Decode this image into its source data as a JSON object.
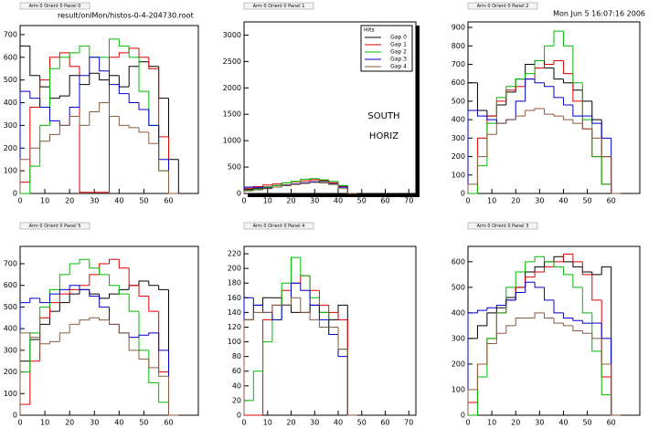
{
  "file_label": "result/onlMon/histos-0-4-204730.root",
  "timestamp": "Mon Jun  5 16:07:16 2006",
  "chart_data": [
    {
      "type": "histogram",
      "title": "Arm 0 Orient 0 Panel 0",
      "xlim": [
        0,
        72
      ],
      "xticks": [
        0,
        10,
        20,
        30,
        40,
        50,
        60
      ],
      "ylim": [
        0,
        740
      ],
      "yticks": [
        0,
        100,
        200,
        300,
        400,
        500,
        600,
        700
      ],
      "bins": [
        0,
        4,
        8,
        12,
        16,
        20,
        24,
        28,
        32,
        36,
        40,
        44,
        48,
        52,
        56,
        60,
        64
      ],
      "series": [
        {
          "color": "#000000",
          "values": [
            650,
            520,
            470,
            420,
            430,
            520,
            480,
            530,
            500,
            520,
            470,
            560,
            580,
            560,
            420,
            150
          ]
        },
        {
          "color": "#dd0000",
          "values": [
            50,
            380,
            500,
            600,
            620,
            560,
            5,
            5,
            5,
            600,
            620,
            640,
            600,
            550,
            250,
            0
          ]
        },
        {
          "color": "#00bb00",
          "values": [
            0,
            120,
            300,
            550,
            600,
            620,
            650,
            600,
            600,
            680,
            650,
            600,
            450,
            300,
            100,
            0
          ]
        },
        {
          "color": "#0000cc",
          "values": [
            450,
            420,
            380,
            320,
            300,
            380,
            520,
            600,
            540,
            480,
            440,
            400,
            370,
            300,
            150,
            0
          ]
        },
        {
          "color": "#8b5a3c",
          "values": [
            150,
            200,
            230,
            260,
            300,
            340,
            300,
            360,
            400,
            340,
            300,
            290,
            270,
            220,
            100,
            0
          ]
        }
      ]
    },
    {
      "type": "histogram",
      "title": "Arm 0 Orient 0 Panel 1",
      "xlim": [
        0,
        73
      ],
      "xticks": [
        0,
        10,
        20,
        30,
        40,
        50,
        60,
        70
      ],
      "ylim": [
        0,
        3250
      ],
      "yticks": [
        0,
        500,
        1000,
        1500,
        2000,
        2500,
        3000
      ],
      "bins": [
        0,
        4,
        8,
        12,
        16,
        20,
        24,
        28,
        32,
        36,
        40,
        44,
        48
      ],
      "legend_title": "Hits",
      "legend": "upper right",
      "annotations": [
        "SOUTH",
        "HORIZ"
      ],
      "series": [
        {
          "name": "Gap 0",
          "color": "#000000",
          "values": [
            80,
            100,
            120,
            150,
            160,
            180,
            200,
            220,
            230,
            200,
            150,
            0
          ]
        },
        {
          "name": "Gap 1",
          "color": "#dd0000",
          "values": [
            100,
            130,
            160,
            180,
            200,
            220,
            240,
            260,
            250,
            200,
            130,
            0
          ]
        },
        {
          "name": "Gap 2",
          "color": "#00bb00",
          "values": [
            60,
            80,
            110,
            150,
            200,
            230,
            270,
            280,
            260,
            230,
            150,
            0
          ]
        },
        {
          "name": "Gap 3",
          "color": "#0000cc",
          "values": [
            120,
            110,
            100,
            120,
            150,
            180,
            200,
            220,
            200,
            180,
            120,
            0
          ]
        },
        {
          "name": "Gap 4",
          "color": "#8b5a3c",
          "values": [
            50,
            70,
            90,
            120,
            150,
            170,
            190,
            210,
            200,
            170,
            100,
            0
          ]
        }
      ]
    },
    {
      "type": "histogram",
      "title": "Arm 0 Orient 0 Panel 2",
      "xlim": [
        0,
        72
      ],
      "xticks": [
        0,
        10,
        20,
        30,
        40,
        50,
        60
      ],
      "ylim": [
        0,
        930
      ],
      "yticks": [
        0,
        100,
        200,
        300,
        400,
        500,
        600,
        700,
        800,
        900
      ],
      "bins": [
        0,
        4,
        8,
        12,
        16,
        20,
        24,
        28,
        32,
        36,
        40,
        44,
        48,
        52,
        56,
        60,
        64
      ],
      "series": [
        {
          "color": "#000000",
          "values": [
            600,
            450,
            420,
            480,
            550,
            620,
            700,
            720,
            680,
            620,
            600,
            560,
            500,
            400,
            200,
            0
          ]
        },
        {
          "color": "#dd0000",
          "values": [
            0,
            300,
            420,
            500,
            560,
            580,
            620,
            680,
            700,
            720,
            650,
            500,
            350,
            200,
            50,
            0
          ]
        },
        {
          "color": "#00bb00",
          "values": [
            0,
            150,
            380,
            520,
            580,
            620,
            650,
            720,
            800,
            880,
            800,
            600,
            400,
            200,
            50,
            0
          ]
        },
        {
          "color": "#0000cc",
          "values": [
            450,
            420,
            400,
            380,
            400,
            500,
            620,
            600,
            580,
            520,
            480,
            420,
            420,
            380,
            300,
            0
          ]
        },
        {
          "color": "#8b5a3c",
          "values": [
            50,
            200,
            320,
            380,
            400,
            420,
            450,
            460,
            430,
            420,
            400,
            380,
            350,
            300,
            200,
            0
          ]
        }
      ]
    },
    {
      "type": "histogram",
      "title": "Arm 0 Orient 0 Panel 5",
      "xlim": [
        0,
        72
      ],
      "xticks": [
        0,
        10,
        20,
        30,
        40,
        50,
        60
      ],
      "ylim": [
        0,
        780
      ],
      "yticks": [
        0,
        100,
        200,
        300,
        400,
        500,
        600,
        700
      ],
      "bins": [
        0,
        4,
        8,
        12,
        16,
        20,
        24,
        28,
        32,
        36,
        40,
        44,
        48,
        52,
        56,
        60,
        64
      ],
      "series": [
        {
          "color": "#000000",
          "values": [
            250,
            350,
            420,
            480,
            520,
            560,
            580,
            560,
            540,
            560,
            580,
            600,
            620,
            600,
            580,
            0
          ]
        },
        {
          "color": "#dd0000",
          "values": [
            50,
            250,
            450,
            520,
            560,
            580,
            600,
            650,
            700,
            720,
            680,
            600,
            550,
            480,
            200,
            0
          ]
        },
        {
          "color": "#00bb00",
          "values": [
            200,
            380,
            500,
            580,
            650,
            700,
            720,
            680,
            650,
            600,
            560,
            480,
            300,
            150,
            60,
            0
          ]
        },
        {
          "color": "#0000cc",
          "values": [
            520,
            540,
            520,
            560,
            580,
            600,
            580,
            550,
            500,
            420,
            380,
            360,
            370,
            380,
            300,
            0
          ]
        },
        {
          "color": "#8b5a3c",
          "values": [
            380,
            360,
            330,
            340,
            380,
            420,
            440,
            450,
            440,
            420,
            380,
            300,
            260,
            220,
            180,
            0
          ]
        }
      ]
    },
    {
      "type": "histogram",
      "title": "Arm 0 Orient 0 Panel 4",
      "xlim": [
        0,
        73
      ],
      "xticks": [
        0,
        10,
        20,
        30,
        40,
        50,
        60,
        70
      ],
      "ylim": [
        0,
        230
      ],
      "yticks": [
        0,
        20,
        40,
        60,
        80,
        100,
        120,
        140,
        160,
        180,
        200,
        220
      ],
      "bins": [
        0,
        4,
        8,
        12,
        16,
        20,
        24,
        28,
        32,
        36,
        40,
        44,
        48
      ],
      "series": [
        {
          "color": "#000000",
          "values": [
            130,
            150,
            160,
            160,
            150,
            140,
            140,
            150,
            140,
            130,
            150,
            0
          ]
        },
        {
          "color": "#dd0000",
          "values": [
            0,
            0,
            130,
            150,
            170,
            180,
            190,
            170,
            150,
            140,
            130,
            0
          ]
        },
        {
          "color": "#00bb00",
          "values": [
            20,
            60,
            100,
            130,
            180,
            215,
            190,
            160,
            140,
            110,
            90,
            0
          ]
        },
        {
          "color": "#0000cc",
          "values": [
            160,
            150,
            140,
            130,
            150,
            180,
            170,
            150,
            130,
            110,
            80,
            0
          ]
        },
        {
          "color": "#8b5a3c",
          "values": [
            130,
            140,
            140,
            150,
            150,
            160,
            140,
            130,
            120,
            120,
            90,
            0
          ]
        }
      ]
    },
    {
      "type": "histogram",
      "title": "Arm 0 Orient 0 Panel 3",
      "xlim": [
        0,
        72
      ],
      "xticks": [
        0,
        10,
        20,
        30,
        40,
        50,
        60
      ],
      "ylim": [
        0,
        660
      ],
      "yticks": [
        0,
        100,
        200,
        300,
        400,
        500,
        600
      ],
      "bins": [
        0,
        4,
        8,
        12,
        16,
        20,
        24,
        28,
        32,
        36,
        40,
        44,
        48,
        52,
        56,
        60,
        64
      ],
      "series": [
        {
          "color": "#000000",
          "values": [
            300,
            350,
            400,
            420,
            460,
            500,
            560,
            580,
            600,
            620,
            600,
            580,
            560,
            550,
            580,
            0
          ]
        },
        {
          "color": "#dd0000",
          "values": [
            50,
            200,
            300,
            400,
            450,
            500,
            540,
            560,
            580,
            600,
            630,
            600,
            550,
            450,
            150,
            0
          ]
        },
        {
          "color": "#00bb00",
          "values": [
            0,
            150,
            300,
            400,
            500,
            560,
            600,
            620,
            600,
            580,
            550,
            500,
            400,
            250,
            80,
            0
          ]
        },
        {
          "color": "#0000cc",
          "values": [
            400,
            410,
            420,
            430,
            450,
            480,
            520,
            500,
            450,
            400,
            380,
            370,
            360,
            360,
            300,
            0
          ]
        },
        {
          "color": "#8b5a3c",
          "values": [
            100,
            200,
            280,
            320,
            350,
            380,
            380,
            400,
            380,
            360,
            350,
            330,
            320,
            300,
            200,
            0
          ]
        }
      ]
    }
  ]
}
